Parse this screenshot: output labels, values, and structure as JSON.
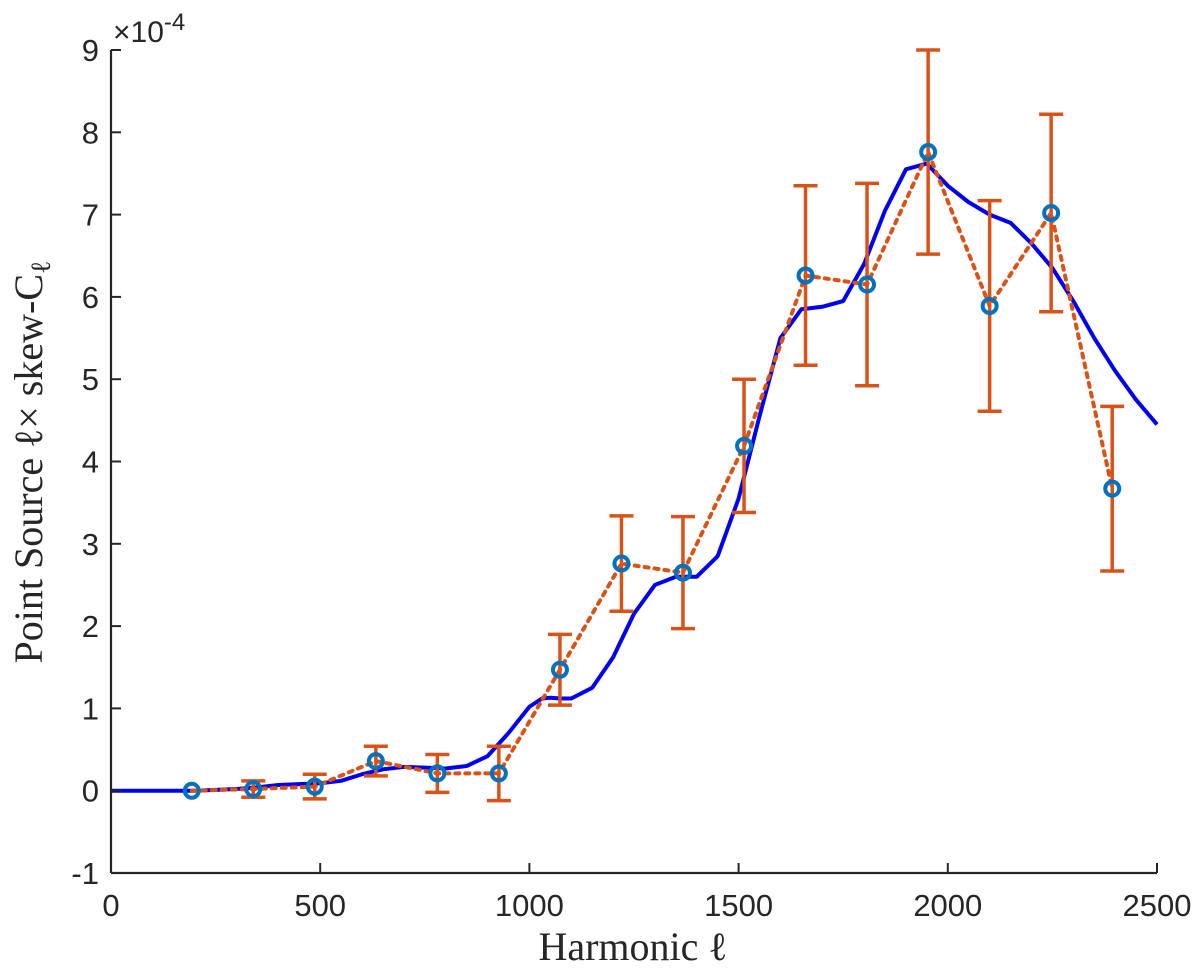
{
  "chart_data": {
    "type": "line",
    "xlabel": "Harmonic ℓ",
    "ylabel": "Point Source ℓ× skew-C",
    "ylabel_subscript": "ℓ",
    "y_exponent": {
      "base": "×10",
      "power": "-4"
    },
    "xlim": [
      0,
      2500
    ],
    "ylim": [
      -1,
      9
    ],
    "x_ticks": [
      0,
      500,
      1000,
      1500,
      2000,
      2500
    ],
    "y_ticks": [
      -1,
      0,
      1,
      2,
      3,
      4,
      5,
      6,
      7,
      8,
      9
    ],
    "grid": false,
    "colors": {
      "curve": "#0000ee",
      "data": "#d95319",
      "marker": "#0072bd",
      "axis": "#262626"
    },
    "series": [
      {
        "kind": "errorbar",
        "style": "dotted-line-with-circle-markers",
        "x": [
          193,
          340,
          487,
          633,
          780,
          927,
          1073,
          1220,
          1367,
          1513,
          1660,
          1807,
          1953,
          2100,
          2247,
          2393
        ],
        "y": [
          0.0,
          0.02,
          0.05,
          0.36,
          0.21,
          0.21,
          1.47,
          2.76,
          2.65,
          4.19,
          6.26,
          6.15,
          7.76,
          5.89,
          7.02,
          3.67
        ],
        "yerr": [
          0.0,
          0.1,
          0.15,
          0.18,
          0.23,
          0.33,
          0.43,
          0.58,
          0.68,
          0.81,
          1.09,
          1.23,
          1.24,
          1.28,
          1.2,
          1.0
        ]
      },
      {
        "kind": "line",
        "style": "solid",
        "x": [
          0,
          100,
          200,
          300,
          350,
          400,
          450,
          500,
          550,
          600,
          650,
          700,
          750,
          800,
          850,
          900,
          950,
          1000,
          1030,
          1050,
          1075,
          1100,
          1150,
          1200,
          1250,
          1300,
          1350,
          1400,
          1450,
          1500,
          1550,
          1600,
          1650,
          1700,
          1750,
          1800,
          1850,
          1900,
          1950,
          2000,
          2050,
          2100,
          2150,
          2200,
          2250,
          2300,
          2350,
          2400,
          2450,
          2500
        ],
        "y": [
          0.0,
          0.0,
          0.0,
          0.02,
          0.04,
          0.07,
          0.08,
          0.09,
          0.12,
          0.2,
          0.26,
          0.29,
          0.28,
          0.27,
          0.3,
          0.42,
          0.7,
          1.02,
          1.12,
          1.13,
          1.12,
          1.12,
          1.25,
          1.62,
          2.15,
          2.5,
          2.6,
          2.6,
          2.85,
          3.55,
          4.55,
          5.5,
          5.85,
          5.88,
          5.95,
          6.4,
          7.05,
          7.55,
          7.62,
          7.35,
          7.15,
          7.0,
          6.9,
          6.65,
          6.35,
          5.95,
          5.5,
          5.1,
          4.75,
          4.45
        ]
      }
    ]
  }
}
